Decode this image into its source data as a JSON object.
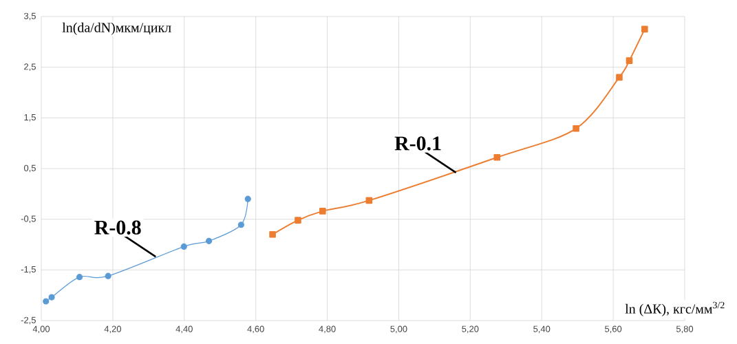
{
  "chart_data": {
    "type": "line",
    "xlabel": "ln (ΔК), кгс/мм$^{3/2}$",
    "ylabel": "ln(da/dN)мкм/цикл",
    "series": [
      {
        "color": "#5b9bd5",
        "marker": "circle",
        "x": [
          4.013,
          4.029,
          4.107,
          4.187,
          4.399,
          4.469,
          4.559,
          4.578
        ],
        "values": [
          -2.12,
          -2.04,
          -1.64,
          -1.62,
          -1.04,
          -0.93,
          -0.61,
          -0.1
        ]
      },
      {
        "color": "#ed7d31",
        "marker": "square",
        "x": [
          4.647,
          4.718,
          4.787,
          4.917,
          5.275,
          5.496,
          5.617,
          5.645,
          5.688
        ],
        "values": [
          -0.8,
          -0.52,
          -0.34,
          -0.13,
          0.72,
          1.29,
          2.3,
          2.63,
          3.25
        ]
      }
    ],
    "xlim": [
      4.0,
      5.8
    ],
    "xticks": [
      {
        "value": 4.0,
        "label": "4,00"
      },
      {
        "value": 4.2,
        "label": "4,20"
      },
      {
        "value": 4.4,
        "label": "4,40"
      },
      {
        "value": 4.6,
        "label": "4,60"
      },
      {
        "value": 4.8,
        "label": "4,80"
      },
      {
        "value": 5.0,
        "label": "5,00"
      },
      {
        "value": 5.2,
        "label": "5,20"
      },
      {
        "value": 5.4,
        "label": "5,40"
      },
      {
        "value": 5.6,
        "label": "5,60"
      },
      {
        "value": 5.8,
        "label": "5,80"
      }
    ],
    "ylim": [
      -2.5,
      3.5
    ],
    "yticks": [
      {
        "value": -2.5,
        "label": "-2,5"
      },
      {
        "value": -1.5,
        "label": "-1,5"
      },
      {
        "value": -0.5,
        "label": "-0,5"
      },
      {
        "value": 0.5,
        "label": "0,5"
      },
      {
        "value": 1.5,
        "label": "1,5"
      },
      {
        "value": 2.5,
        "label": "2,5"
      },
      {
        "value": 3.5,
        "label": "3,5"
      }
    ],
    "annotations": [
      {
        "text": "R-0.8",
        "x": 4.32,
        "y": -1.24
      },
      {
        "text": "R-0.1",
        "x": 5.16,
        "y": 0.42
      }
    ],
    "grid": true,
    "line_style": "solid"
  }
}
